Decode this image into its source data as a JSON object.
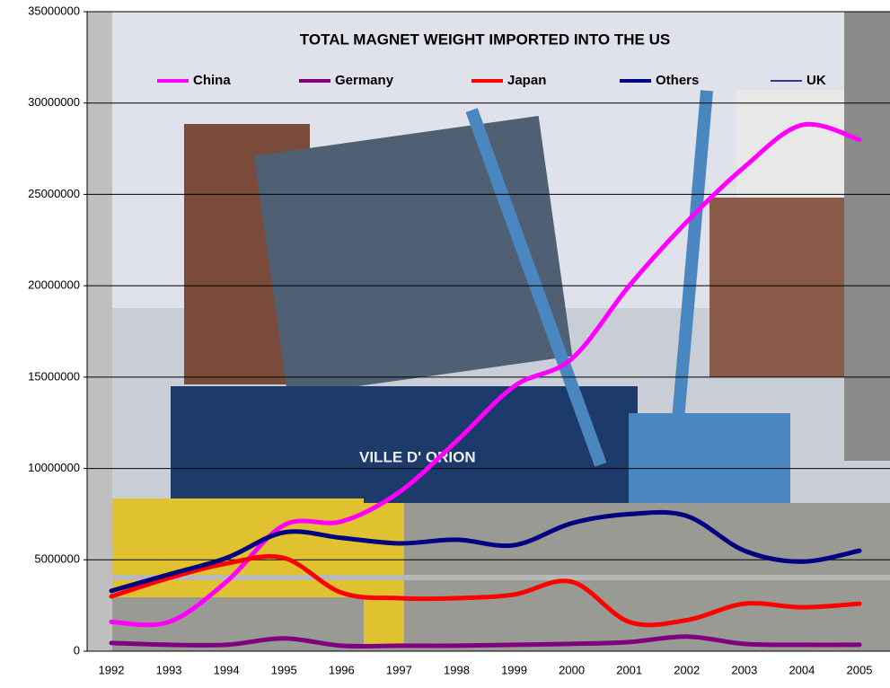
{
  "chart_data": {
    "type": "line",
    "title": "TOTAL MAGNET WEIGHT IMPORTED INTO THE US",
    "categories": [
      "1992",
      "1993",
      "1994",
      "1995",
      "1996",
      "1997",
      "1998",
      "1999",
      "2000",
      "2001",
      "2002",
      "2003",
      "2004",
      "2005"
    ],
    "series": [
      {
        "name": "China",
        "color": "#ff00ff",
        "values": [
          1600000,
          1600000,
          3800000,
          6900000,
          7100000,
          8700000,
          11500000,
          14500000,
          16000000,
          20000000,
          23500000,
          26500000,
          28800000,
          28000000
        ]
      },
      {
        "name": "Germany",
        "color": "#800080",
        "values": [
          450000,
          350000,
          350000,
          700000,
          300000,
          300000,
          300000,
          350000,
          400000,
          500000,
          800000,
          400000,
          350000,
          350000
        ]
      },
      {
        "name": "Japan",
        "color": "#ff0000",
        "values": [
          3000000,
          4000000,
          4800000,
          5100000,
          3200000,
          2900000,
          2900000,
          3100000,
          3800000,
          1600000,
          1700000,
          2600000,
          2400000,
          2600000
        ]
      },
      {
        "name": "Others",
        "color": "#000080",
        "values": [
          3300000,
          4200000,
          5100000,
          6500000,
          6200000,
          5900000,
          6100000,
          5800000,
          7000000,
          7500000,
          7400000,
          5500000,
          4900000,
          5500000
        ]
      },
      {
        "name": "UK",
        "color": "#000080",
        "values": [
          null,
          null,
          null,
          null,
          null,
          null,
          null,
          null,
          null,
          null,
          null,
          null,
          null,
          null
        ]
      }
    ],
    "ylim": [
      0,
      35000000
    ],
    "yticks": [
      0,
      5000000,
      10000000,
      15000000,
      20000000,
      25000000,
      30000000,
      35000000
    ],
    "grid": true
  }
}
